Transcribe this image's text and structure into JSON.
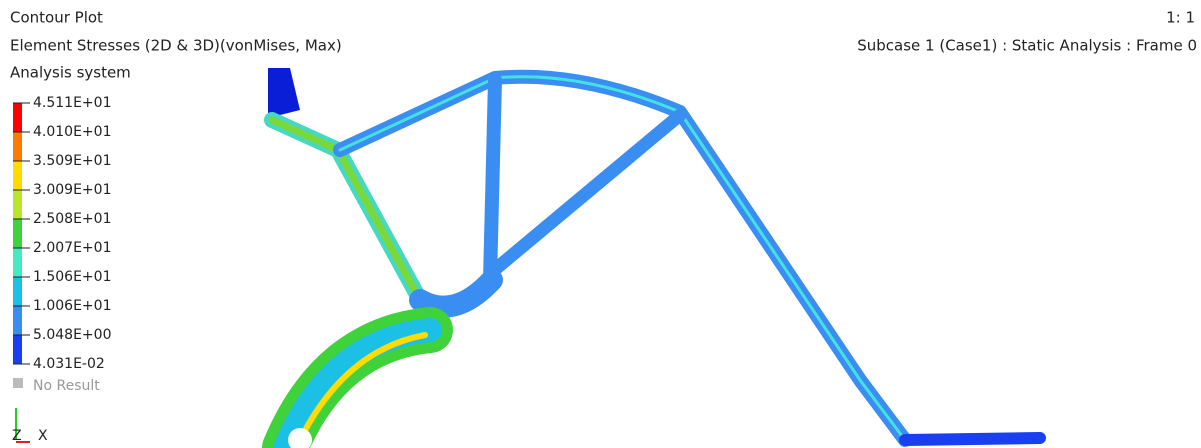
{
  "header": {
    "title": "Contour Plot",
    "result": "Element Stresses (2D & 3D)(vonMises, Max)",
    "system": "Analysis system",
    "scale": "1: 1",
    "subcase": "Subcase 1 (Case1) : Static Analysis : Frame 0"
  },
  "legend": {
    "labels": [
      "4.511E+01",
      "4.010E+01",
      "3.509E+01",
      "3.009E+01",
      "2.508E+01",
      "2.007E+01",
      "1.506E+01",
      "1.006E+01",
      "5.048E+00",
      "4.031E-02"
    ],
    "colors": [
      "#ff0000",
      "#ff7a00",
      "#ffdc00",
      "#b8e62a",
      "#3fd23a",
      "#46eac2",
      "#1cc0e4",
      "#3a8ef2",
      "#1a3ff0"
    ],
    "no_result": "No Result"
  },
  "triad": {
    "z": "Z",
    "x": "X"
  }
}
